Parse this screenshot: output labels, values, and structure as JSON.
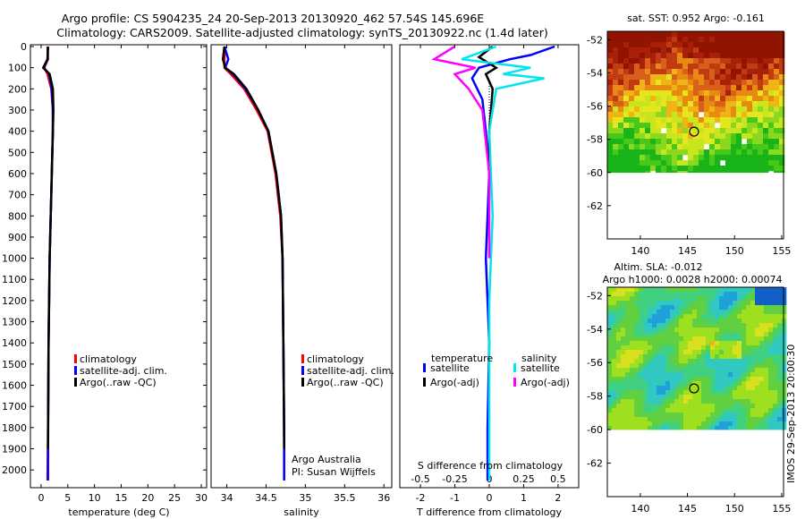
{
  "header": {
    "line1": "Argo profile: CS 5904235_24 20-Sep-2013 20130920_462 57.54S 145.696E",
    "line2": "Climatology: CARS2009. Satellite-adjusted climatology: synTS_20130922.nc (1.4d later)"
  },
  "colors": {
    "climatology": "#ff0000",
    "satellite_clim": "#0000ff",
    "argo": "#000000",
    "sal_satellite": "#00e5ee",
    "sal_argo": "#ff00ff"
  },
  "chart_data": [
    {
      "id": "temperature",
      "type": "line",
      "xlabel": "temperature (deg C)",
      "xlim": [
        -2,
        31
      ],
      "xticks": [
        "0",
        "5",
        "10",
        "15",
        "20",
        "25",
        "30"
      ],
      "ylim": [
        2050,
        0
      ],
      "yticks": [
        "0",
        "100",
        "200",
        "300",
        "400",
        "500",
        "600",
        "700",
        "800",
        "900",
        "1000",
        "1100",
        "1200",
        "1300",
        "1400",
        "1500",
        "1600",
        "1700",
        "1800",
        "1900",
        "2000"
      ],
      "legend": [
        "climatology",
        "satellite-adj. clim.",
        "Argo(..raw -QC)"
      ],
      "series": [
        {
          "name": "climatology",
          "color": "#ff0000",
          "x": [
            1.2,
            1.3,
            0.6,
            1.2,
            1.9,
            2.2,
            2.2,
            2.0,
            1.8,
            1.6,
            1.4,
            1.3,
            1.2
          ],
          "y": [
            0,
            60,
            100,
            130,
            200,
            300,
            400,
            600,
            800,
            1000,
            1400,
            1800,
            2050
          ]
        },
        {
          "name": "satellite-adj. clim.",
          "color": "#0000ff",
          "x": [
            1.3,
            1.2,
            0.5,
            1.5,
            2.0,
            2.2,
            2.2,
            2.0,
            1.8,
            1.6,
            1.4,
            1.3,
            1.3
          ],
          "y": [
            0,
            60,
            100,
            130,
            200,
            300,
            400,
            600,
            800,
            1000,
            1400,
            1800,
            2050
          ]
        },
        {
          "name": "Argo(..raw -QC)",
          "color": "#000000",
          "x": [
            1.3,
            1.2,
            0.4,
            1.6,
            2.2,
            2.3,
            2.2,
            2.0,
            1.8,
            1.6,
            1.4,
            1.3
          ],
          "y": [
            0,
            60,
            100,
            130,
            200,
            300,
            400,
            600,
            800,
            1000,
            1400,
            1900
          ]
        }
      ]
    },
    {
      "id": "salinity",
      "type": "line",
      "xlabel": "salinity",
      "xlim": [
        33.8,
        36.1
      ],
      "xticks": [
        "34",
        "34.5",
        "35",
        "35.5",
        "36"
      ],
      "ylim": [
        2050,
        0
      ],
      "legend": [
        "climatology",
        "satellite-adj. clim.",
        "Argo(..raw -QC)"
      ],
      "annotation": [
        "Argo Australia",
        "PI: Susan Wijffels"
      ],
      "series": [
        {
          "name": "climatology",
          "color": "#ff0000",
          "x": [
            33.98,
            33.97,
            33.97,
            34.05,
            34.22,
            34.38,
            34.52,
            34.62,
            34.68,
            34.71,
            34.72,
            34.73,
            34.73
          ],
          "y": [
            0,
            60,
            100,
            130,
            200,
            300,
            400,
            600,
            800,
            1000,
            1400,
            1800,
            2050
          ]
        },
        {
          "name": "satellite-adj. clim.",
          "color": "#0000ff",
          "x": [
            33.97,
            34.02,
            33.98,
            34.08,
            34.24,
            34.4,
            34.53,
            34.63,
            34.69,
            34.71,
            34.72,
            34.73,
            34.73
          ],
          "y": [
            0,
            60,
            100,
            130,
            200,
            300,
            400,
            600,
            800,
            1000,
            1400,
            1800,
            2050
          ]
        },
        {
          "name": "Argo(..raw -QC)",
          "color": "#000000",
          "x": [
            33.97,
            33.95,
            33.98,
            34.09,
            34.25,
            34.4,
            34.53,
            34.63,
            34.69,
            34.71,
            34.72,
            34.73
          ],
          "y": [
            0,
            60,
            100,
            130,
            200,
            300,
            400,
            600,
            800,
            1000,
            1400,
            1900
          ]
        }
      ]
    },
    {
      "id": "difference",
      "type": "line",
      "xlabel": "T difference from climatology",
      "xlabel_top": "S difference from climatology",
      "xlim": [
        -2.6,
        2.6
      ],
      "xticks": [
        "-2",
        "-1",
        "0",
        "1",
        "2"
      ],
      "xticks_top": [
        "-0.5",
        "-0.25",
        "0",
        "0.25",
        "0.5"
      ],
      "ylim": [
        2050,
        0
      ],
      "legend_headers": [
        "temperature",
        "salinity"
      ],
      "legend": [
        "satellite",
        "Argo(-adj)",
        "satellite",
        "Argo(-adj)"
      ],
      "series": [
        {
          "name": "T satellite",
          "color": "#0000ff",
          "x": [
            1.9,
            1.2,
            0.6,
            -0.3,
            -0.5,
            -0.2,
            -0.1,
            0.0,
            -0.05,
            -0.1,
            0.0,
            -0.05,
            -0.05
          ],
          "y": [
            0,
            40,
            60,
            100,
            150,
            250,
            400,
            600,
            800,
            1000,
            1400,
            1800,
            2050
          ]
        },
        {
          "name": "T Argo(-adj)",
          "color": "#000000",
          "x": [
            0.1,
            -0.3,
            0.2,
            -0.1,
            0.1,
            0.0,
            0.0
          ],
          "y": [
            0,
            50,
            100,
            130,
            200,
            400,
            600
          ]
        },
        {
          "name": "S satellite",
          "color": "#00e5ee",
          "x": [
            0.1,
            -0.4,
            0.6,
            0.2,
            0.8,
            0.1,
            0.0,
            0.05,
            0.0,
            0.0,
            0.0
          ],
          "y": [
            0,
            60,
            100,
            130,
            150,
            200,
            400,
            800,
            1200,
            1800,
            2050
          ]
        },
        {
          "name": "S Argo(-adj)",
          "color": "#ff00ff",
          "x": [
            -0.5,
            -0.8,
            -0.2,
            -0.5,
            -0.3,
            -0.1,
            0.0,
            0.0
          ],
          "y": [
            0,
            60,
            100,
            130,
            200,
            300,
            600,
            1000
          ]
        }
      ]
    },
    {
      "id": "sst_map",
      "type": "heatmap",
      "title": "sat. SST: 0.952  Argo: -0.161",
      "xlim": [
        136.5,
        155.2
      ],
      "ylim": [
        -64,
        -51.5
      ],
      "xticks": [
        "140",
        "145",
        "150",
        "155"
      ],
      "yticks": [
        "-52",
        "-54",
        "-56",
        "-58",
        "-60",
        "-62"
      ],
      "data_lat_range": [
        -60,
        -51.5
      ],
      "marker": {
        "lon": 145.7,
        "lat": -57.54
      }
    },
    {
      "id": "sla_map",
      "type": "heatmap",
      "title": "Altim. SLA: -0.012",
      "subtitle": "Argo h1000: 0.0028 h2000: 0.00074",
      "xlim": [
        136.5,
        155.2
      ],
      "ylim": [
        -64,
        -51.5
      ],
      "xticks": [
        "140",
        "145",
        "150",
        "155"
      ],
      "yticks": [
        "-52",
        "-54",
        "-56",
        "-58",
        "-60",
        "-62"
      ],
      "data_lat_range": [
        -60,
        -51.5
      ],
      "marker": {
        "lon": 145.7,
        "lat": -57.54
      }
    }
  ],
  "side_label": "IMOS 29-Sep-2013 20:00:30"
}
